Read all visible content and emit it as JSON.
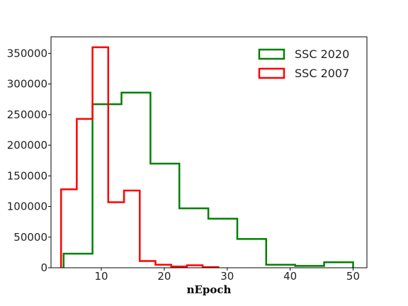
{
  "chart_data": {
    "type": "histogram",
    "xlabel": "nEpoch",
    "ylabel": "",
    "xlim": [
      2,
      52.2
    ],
    "ylim": [
      0,
      377000
    ],
    "xticks": [
      10,
      20,
      30,
      40,
      50
    ],
    "yticks": [
      0,
      50000,
      100000,
      150000,
      200000,
      250000,
      300000,
      350000
    ],
    "grid": false,
    "legend_position": "top-right",
    "series": [
      {
        "name": "SSC 2020",
        "color": "#008000",
        "bin_edges": [
          4,
          8.6,
          13.2,
          17.8,
          22.4,
          27,
          31.6,
          36.2,
          40.8,
          45.4,
          50
        ],
        "counts": [
          23000,
          267000,
          286000,
          170000,
          97000,
          80000,
          47000,
          5000,
          3000,
          9000
        ]
      },
      {
        "name": "SSC 2007",
        "color": "#ff0000",
        "bin_edges": [
          3.6,
          6.1,
          8.6,
          11.1,
          13.6,
          16.1,
          18.6,
          21.1,
          23.6,
          26.1,
          28.6
        ],
        "counts": [
          128000,
          243000,
          360000,
          107000,
          126000,
          11000,
          5000,
          2000,
          4000,
          1000
        ]
      }
    ]
  }
}
